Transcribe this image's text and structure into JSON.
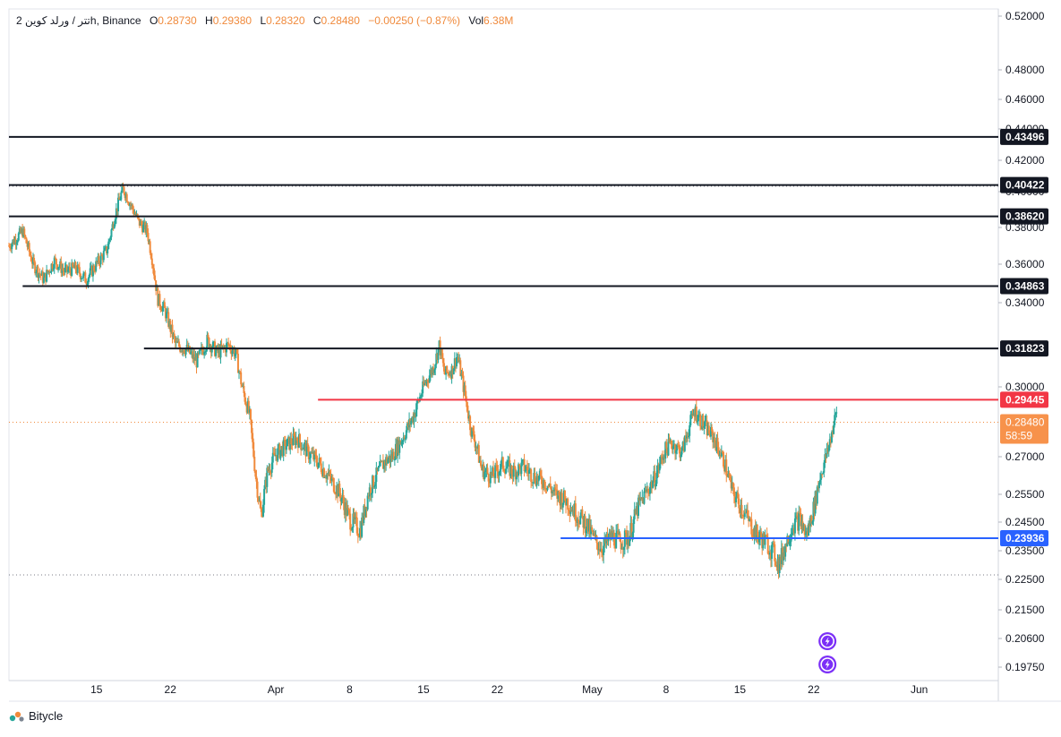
{
  "legend": {
    "symbol": "2 تتر / ورلد كوين",
    "timeframe": "h",
    "exchange": "Binance",
    "o_label": "O",
    "o": "0.28730",
    "h_label": "H",
    "h": "0.29380",
    "l_label": "L",
    "l": "0.28320",
    "c_label": "C",
    "c": "0.28480",
    "change": "−0.00250 (−0.87%)",
    "vol_label": "Vol",
    "vol": "6.38M"
  },
  "brand": {
    "name": "Bitycle",
    "icon": "bitycle-logo-icon"
  },
  "colors": {
    "up": "#26a69a",
    "down": "#f08a3c",
    "resistance": "#131722",
    "red_line": "#f23645",
    "blue_line": "#2962ff",
    "last_price_bg": "#f7924b",
    "event_icon": "#7b2ff7"
  },
  "chart_data": {
    "type": "candlestick",
    "yaxis": {
      "range": [
        0.19,
        0.522
      ],
      "ticks": [
        "0.52000",
        "0.48000",
        "0.46000",
        "0.44000",
        "0.42000",
        "0.40000",
        "0.38000",
        "0.36000",
        "0.34000",
        "0.30000",
        "0.27000",
        "0.25500",
        "0.24500",
        "0.23500",
        "0.22500",
        "0.21500",
        "0.20600",
        "0.19750"
      ]
    },
    "xaxis": {
      "ticks": [
        "15",
        "22",
        "Apr",
        "8",
        "15",
        "22",
        "May",
        "8",
        "15",
        "22",
        "Jun"
      ],
      "tick_days": [
        15,
        22,
        32,
        39,
        46,
        53,
        62,
        69,
        76,
        83,
        93
      ],
      "day_range": [
        6.7,
        100.5
      ]
    },
    "horizontal_lines": [
      {
        "price": 0.43496,
        "label": "0.43496",
        "color": "#131722",
        "from_day": 6.7
      },
      {
        "price": 0.40422,
        "label": "0.40422",
        "color": "#131722",
        "from_day": 6.7
      },
      {
        "price": 0.3862,
        "label": "0.38620",
        "color": "#131722",
        "from_day": 6.7
      },
      {
        "price": 0.34863,
        "label": "0.34863",
        "color": "#131722",
        "from_day": 8
      },
      {
        "price": 0.31823,
        "label": "0.31823",
        "color": "#131722",
        "from_day": 19.5
      },
      {
        "price": 0.29445,
        "label": "0.29445",
        "color": "#f23645",
        "from_day": 36
      },
      {
        "price": 0.23936,
        "label": "0.23936",
        "color": "#2962ff",
        "from_day": 59
      }
    ],
    "last_price": {
      "price": 0.2848,
      "label": "0.28480",
      "countdown": "58:59"
    },
    "price_path": [
      [
        6.7,
        0.37
      ],
      [
        8,
        0.378
      ],
      [
        9,
        0.36
      ],
      [
        10,
        0.352
      ],
      [
        11,
        0.362
      ],
      [
        12,
        0.356
      ],
      [
        13,
        0.358
      ],
      [
        14,
        0.352
      ],
      [
        15,
        0.36
      ],
      [
        16,
        0.368
      ],
      [
        16.8,
        0.388
      ],
      [
        17.5,
        0.402
      ],
      [
        18.3,
        0.392
      ],
      [
        19,
        0.383
      ],
      [
        19.8,
        0.378
      ],
      [
        20.3,
        0.362
      ],
      [
        20.8,
        0.342
      ],
      [
        21.5,
        0.336
      ],
      [
        22.5,
        0.32
      ],
      [
        23.5,
        0.318
      ],
      [
        24.5,
        0.312
      ],
      [
        25.5,
        0.322
      ],
      [
        26.5,
        0.316
      ],
      [
        27.5,
        0.32
      ],
      [
        28.2,
        0.316
      ],
      [
        28.8,
        0.3
      ],
      [
        29.5,
        0.288
      ],
      [
        30.1,
        0.262
      ],
      [
        30.6,
        0.247
      ],
      [
        31.2,
        0.264
      ],
      [
        32,
        0.271
      ],
      [
        33,
        0.275
      ],
      [
        34,
        0.278
      ],
      [
        35,
        0.272
      ],
      [
        36,
        0.268
      ],
      [
        37,
        0.262
      ],
      [
        38,
        0.256
      ],
      [
        39,
        0.246
      ],
      [
        40,
        0.242
      ],
      [
        40.8,
        0.256
      ],
      [
        41.5,
        0.262
      ],
      [
        42.3,
        0.268
      ],
      [
        43,
        0.27
      ],
      [
        44,
        0.278
      ],
      [
        45,
        0.287
      ],
      [
        46,
        0.3
      ],
      [
        47,
        0.31
      ],
      [
        47.5,
        0.32
      ],
      [
        48,
        0.306
      ],
      [
        48.7,
        0.308
      ],
      [
        49.2,
        0.315
      ],
      [
        49.8,
        0.3
      ],
      [
        50.5,
        0.282
      ],
      [
        51,
        0.275
      ],
      [
        51.5,
        0.265
      ],
      [
        52.5,
        0.262
      ],
      [
        53.5,
        0.267
      ],
      [
        54.5,
        0.264
      ],
      [
        55.5,
        0.266
      ],
      [
        56.5,
        0.262
      ],
      [
        57.5,
        0.26
      ],
      [
        58.5,
        0.255
      ],
      [
        59.5,
        0.253
      ],
      [
        60.5,
        0.248
      ],
      [
        61.5,
        0.244
      ],
      [
        62.3,
        0.238
      ],
      [
        63,
        0.236
      ],
      [
        63.8,
        0.24
      ],
      [
        64.7,
        0.238
      ],
      [
        65.5,
        0.24
      ],
      [
        66.3,
        0.25
      ],
      [
        67,
        0.255
      ],
      [
        68,
        0.262
      ],
      [
        68.8,
        0.272
      ],
      [
        69.5,
        0.276
      ],
      [
        70.5,
        0.272
      ],
      [
        71,
        0.28
      ],
      [
        71.7,
        0.29
      ],
      [
        72.5,
        0.284
      ],
      [
        73.5,
        0.278
      ],
      [
        74.5,
        0.268
      ],
      [
        75.3,
        0.256
      ],
      [
        76.2,
        0.25
      ],
      [
        77,
        0.244
      ],
      [
        77.7,
        0.24
      ],
      [
        78.5,
        0.238
      ],
      [
        79.2,
        0.234
      ],
      [
        79.7,
        0.23
      ],
      [
        80.4,
        0.238
      ],
      [
        81,
        0.244
      ],
      [
        81.7,
        0.246
      ],
      [
        82.3,
        0.24
      ],
      [
        83,
        0.25
      ],
      [
        83.6,
        0.262
      ],
      [
        84.3,
        0.272
      ],
      [
        84.8,
        0.282
      ],
      [
        85.2,
        0.29
      ]
    ]
  },
  "events": [
    {
      "day": 84.3,
      "icon": "lightning-event-icon"
    },
    {
      "day": 84.3,
      "icon": "lightning-event-icon"
    }
  ]
}
